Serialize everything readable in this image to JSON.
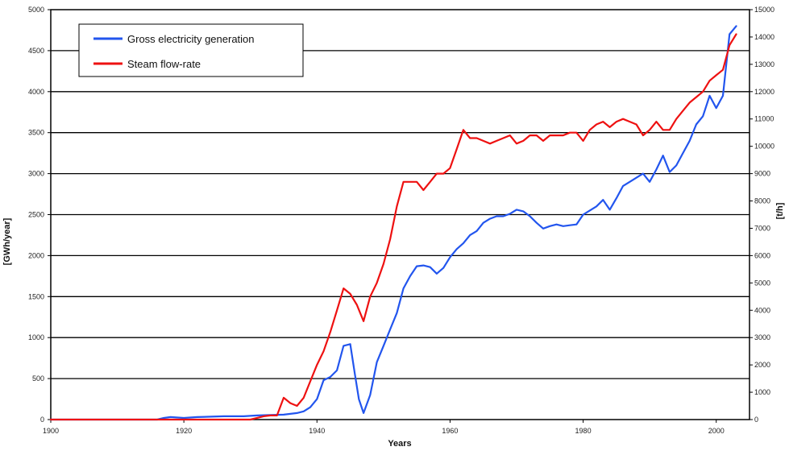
{
  "chart_data": {
    "type": "line",
    "title": "",
    "xlabel": "Years",
    "ylabel_left": "[GWh/year]",
    "ylabel_right": "[t/h]",
    "xlim": [
      1900,
      2005
    ],
    "ylim_left": [
      0,
      5000
    ],
    "ylim_right": [
      0,
      15000
    ],
    "x_ticks": [
      "1900",
      "1920",
      "1940",
      "1960",
      "1980",
      "2000"
    ],
    "y_ticks_left": [
      "0",
      "500",
      "1000",
      "1500",
      "2000",
      "2500",
      "3000",
      "3500",
      "4000",
      "4500",
      "5000"
    ],
    "y_ticks_right": [
      "0",
      "1000",
      "2000",
      "3000",
      "4000",
      "5000",
      "6000",
      "7000",
      "8000",
      "9000",
      "10000",
      "11000",
      "12000",
      "13000",
      "14000",
      "15000"
    ],
    "grid": "horizontal",
    "legend_position": "top-left",
    "series": [
      {
        "name": "Gross electricity generation",
        "axis": "left",
        "color": "#2255ee",
        "points": [
          [
            1900,
            0
          ],
          [
            1916,
            0
          ],
          [
            1917,
            20
          ],
          [
            1918,
            30
          ],
          [
            1920,
            20
          ],
          [
            1922,
            30
          ],
          [
            1926,
            40
          ],
          [
            1929,
            40
          ],
          [
            1931,
            50
          ],
          [
            1933,
            55
          ],
          [
            1935,
            60
          ],
          [
            1936,
            70
          ],
          [
            1937,
            80
          ],
          [
            1938,
            100
          ],
          [
            1939,
            150
          ],
          [
            1940,
            250
          ],
          [
            1941,
            480
          ],
          [
            1942,
            520
          ],
          [
            1943,
            600
          ],
          [
            1944,
            900
          ],
          [
            1945,
            920
          ],
          [
            1945.7,
            550
          ],
          [
            1946.3,
            250
          ],
          [
            1947,
            80
          ],
          [
            1948,
            300
          ],
          [
            1949,
            700
          ],
          [
            1950,
            900
          ],
          [
            1951,
            1100
          ],
          [
            1952,
            1300
          ],
          [
            1953,
            1600
          ],
          [
            1954,
            1750
          ],
          [
            1955,
            1870
          ],
          [
            1956,
            1880
          ],
          [
            1957,
            1860
          ],
          [
            1958,
            1780
          ],
          [
            1959,
            1850
          ],
          [
            1960,
            1980
          ],
          [
            1961,
            2080
          ],
          [
            1962,
            2150
          ],
          [
            1963,
            2250
          ],
          [
            1964,
            2300
          ],
          [
            1965,
            2400
          ],
          [
            1966,
            2450
          ],
          [
            1967,
            2480
          ],
          [
            1968,
            2480
          ],
          [
            1969,
            2510
          ],
          [
            1970,
            2560
          ],
          [
            1971,
            2540
          ],
          [
            1972,
            2480
          ],
          [
            1973,
            2400
          ],
          [
            1974,
            2330
          ],
          [
            1975,
            2360
          ],
          [
            1976,
            2380
          ],
          [
            1977,
            2360
          ],
          [
            1978,
            2370
          ],
          [
            1979,
            2380
          ],
          [
            1980,
            2500
          ],
          [
            1981,
            2550
          ],
          [
            1982,
            2600
          ],
          [
            1983,
            2680
          ],
          [
            1984,
            2560
          ],
          [
            1985,
            2700
          ],
          [
            1986,
            2850
          ],
          [
            1987,
            2900
          ],
          [
            1988,
            2950
          ],
          [
            1989,
            3000
          ],
          [
            1990,
            2900
          ],
          [
            1991,
            3050
          ],
          [
            1992,
            3220
          ],
          [
            1993,
            3020
          ],
          [
            1994,
            3100
          ],
          [
            1995,
            3250
          ],
          [
            1996,
            3400
          ],
          [
            1997,
            3600
          ],
          [
            1998,
            3700
          ],
          [
            1999,
            3950
          ],
          [
            2000,
            3800
          ],
          [
            2001,
            3950
          ],
          [
            2002,
            4700
          ],
          [
            2003,
            4800
          ]
        ]
      },
      {
        "name": "Steam flow-rate",
        "axis": "right",
        "color": "#ee1111",
        "points": [
          [
            1900,
            0
          ],
          [
            1930,
            0
          ],
          [
            1932,
            120
          ],
          [
            1933,
            150
          ],
          [
            1934,
            150
          ],
          [
            1935,
            800
          ],
          [
            1936,
            600
          ],
          [
            1937,
            500
          ],
          [
            1938,
            800
          ],
          [
            1939,
            1400
          ],
          [
            1940,
            2000
          ],
          [
            1941,
            2500
          ],
          [
            1942,
            3200
          ],
          [
            1943,
            4000
          ],
          [
            1944,
            4800
          ],
          [
            1945,
            4600
          ],
          [
            1946,
            4200
          ],
          [
            1947,
            3600
          ],
          [
            1948,
            4500
          ],
          [
            1949,
            5000
          ],
          [
            1950,
            5700
          ],
          [
            1951,
            6600
          ],
          [
            1952,
            7800
          ],
          [
            1953,
            8700
          ],
          [
            1954,
            8700
          ],
          [
            1955,
            8700
          ],
          [
            1956,
            8400
          ],
          [
            1957,
            8700
          ],
          [
            1958,
            9000
          ],
          [
            1959,
            9000
          ],
          [
            1960,
            9200
          ],
          [
            1961,
            9900
          ],
          [
            1962,
            10600
          ],
          [
            1963,
            10300
          ],
          [
            1964,
            10300
          ],
          [
            1965,
            10200
          ],
          [
            1966,
            10100
          ],
          [
            1967,
            10200
          ],
          [
            1968,
            10300
          ],
          [
            1969,
            10400
          ],
          [
            1970,
            10100
          ],
          [
            1971,
            10200
          ],
          [
            1972,
            10400
          ],
          [
            1973,
            10400
          ],
          [
            1974,
            10200
          ],
          [
            1975,
            10400
          ],
          [
            1976,
            10400
          ],
          [
            1977,
            10400
          ],
          [
            1978,
            10500
          ],
          [
            1979,
            10500
          ],
          [
            1980,
            10200
          ],
          [
            1981,
            10600
          ],
          [
            1982,
            10800
          ],
          [
            1983,
            10900
          ],
          [
            1984,
            10700
          ],
          [
            1985,
            10900
          ],
          [
            1986,
            11000
          ],
          [
            1987,
            10900
          ],
          [
            1988,
            10800
          ],
          [
            1989,
            10400
          ],
          [
            1990,
            10600
          ],
          [
            1991,
            10900
          ],
          [
            1992,
            10600
          ],
          [
            1993,
            10600
          ],
          [
            1994,
            11000
          ],
          [
            1995,
            11300
          ],
          [
            1996,
            11600
          ],
          [
            1997,
            11800
          ],
          [
            1998,
            12000
          ],
          [
            1999,
            12400
          ],
          [
            2000,
            12600
          ],
          [
            2001,
            12800
          ],
          [
            2002,
            13700
          ],
          [
            2003,
            14100
          ]
        ]
      }
    ]
  }
}
